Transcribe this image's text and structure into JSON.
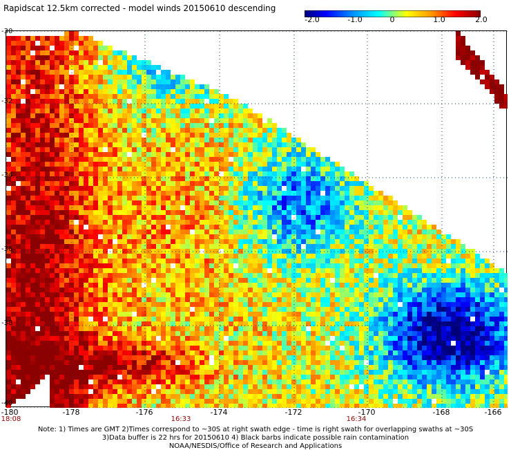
{
  "header": {
    "title": "Rapidscat 12.5km corrected - model winds 20150610 descending"
  },
  "colorbar": {
    "min": -2.0,
    "max": 2.0,
    "tick_labels": [
      "-2.0",
      "-1.0",
      "0",
      "1.0",
      "2.0"
    ],
    "colors": [
      "#00007a",
      "#0000ff",
      "#0096ff",
      "#00ffff",
      "#ffff00",
      "#ff9600",
      "#ff0000",
      "#8b0000"
    ]
  },
  "map": {
    "lat_labels": [
      "-30",
      "-32",
      "-34",
      "-36",
      "-38",
      "-40"
    ],
    "lon_labels": [
      "-180",
      "-178",
      "-176",
      "-174",
      "-172",
      "-170",
      "-168",
      "-166"
    ],
    "time_labels": [
      "18:08",
      "16:33",
      "16:34"
    ],
    "lon_range": [
      -180,
      -165
    ],
    "lat_range": [
      -40,
      -30
    ],
    "grid": "dotted"
  },
  "footer": {
    "line1": "Note: 1) Times are GMT 2)Times correspond to ~30S at right swath edge - time is right swath for overlapping swaths at ~30S",
    "line2": "3)Data buffer is 22 hrs for 20150610 4) Black barbs indicate possible rain contamination",
    "line3": "NOAA/NESDIS/Office of Research and Applications"
  }
}
